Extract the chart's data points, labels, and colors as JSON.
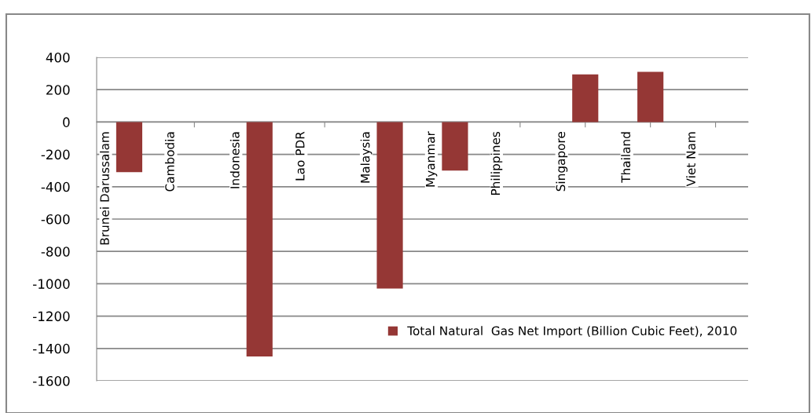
{
  "chart_data": {
    "type": "bar",
    "categories": [
      "Brunei Darussalam",
      "Cambodia",
      "Indonesia",
      "Lao PDR",
      "Malaysia",
      "Myanmar",
      "Philippines",
      "Singapore",
      "Thailand",
      "Viet Nam"
    ],
    "series": [
      {
        "name": "Total Natural  Gas Net Import (Billion Cubic Feet), 2010",
        "color": "#953735",
        "values": [
          -310,
          0,
          -1450,
          0,
          -1030,
          -300,
          0,
          295,
          310,
          0
        ]
      }
    ],
    "ylim": [
      -1600,
      400
    ],
    "yticks": [
      -1600,
      -1400,
      -1200,
      -1000,
      -800,
      -600,
      -400,
      -200,
      0,
      200,
      400
    ],
    "grid": "y",
    "legend": "bottom right"
  }
}
